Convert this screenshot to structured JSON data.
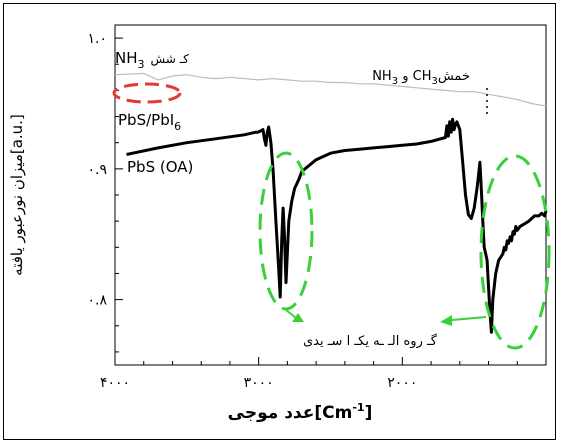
{
  "chart_data": {
    "type": "line",
    "title": "",
    "xlabel": "عدد موجی[Cm-1]",
    "xlabel_parts": {
      "main": "عدد موجی[Cm",
      "sup": "-1",
      "close": "]"
    },
    "ylabel": "میزان نورعبور یافته[a.u.]",
    "xlim": [
      4000,
      1000
    ],
    "ylim": [
      0.75,
      1.01
    ],
    "x_ticks": [
      {
        "value": 4000,
        "label": "۴۰۰۰"
      },
      {
        "value": 3000,
        "label": "۳۰۰۰"
      },
      {
        "value": 2000,
        "label": "۲۰۰۰"
      }
    ],
    "y_ticks": [
      {
        "value": 1.0,
        "label": "۱.۰"
      },
      {
        "value": 0.9,
        "label": "۰.۹"
      },
      {
        "value": 0.8,
        "label": "۰.۸"
      }
    ],
    "series": [
      {
        "name": "PbS/PbI6",
        "color": "#bdbdbd",
        "x": [
          4000,
          3800,
          3700,
          3600,
          3500,
          3400,
          3300,
          3200,
          3100,
          3000,
          2900,
          2800,
          2700,
          2600,
          2500,
          2400,
          2300,
          2200,
          2100,
          2000,
          1900,
          1800,
          1700,
          1600,
          1500,
          1400,
          1300,
          1200,
          1100,
          1000
        ],
        "y": [
          0.972,
          0.973,
          0.968,
          0.971,
          0.972,
          0.97,
          0.969,
          0.97,
          0.969,
          0.968,
          0.969,
          0.968,
          0.967,
          0.967,
          0.966,
          0.966,
          0.965,
          0.965,
          0.964,
          0.963,
          0.962,
          0.961,
          0.96,
          0.959,
          0.959,
          0.957,
          0.955,
          0.953,
          0.95,
          0.948
        ]
      },
      {
        "name": "PbS (OA)",
        "color": "#000000",
        "x": [
          3920,
          3700,
          3500,
          3300,
          3100,
          3020,
          3005,
          2985,
          2970,
          2960,
          2950,
          2940,
          2930,
          2915,
          2900,
          2880,
          2860,
          2850,
          2840,
          2830,
          2820,
          2810,
          2790,
          2770,
          2750,
          2720,
          2700,
          2600,
          2500,
          2400,
          2300,
          2200,
          2100,
          2000,
          1900,
          1800,
          1700,
          1690,
          1680,
          1670,
          1660,
          1650,
          1640,
          1630,
          1620,
          1600,
          1580,
          1560,
          1540,
          1520,
          1500,
          1480,
          1470,
          1460,
          1450,
          1440,
          1430,
          1420,
          1410,
          1400,
          1390,
          1380,
          1370,
          1350,
          1330,
          1300,
          1290,
          1280,
          1270,
          1260,
          1250,
          1240,
          1230,
          1220,
          1210,
          1200,
          1180,
          1150,
          1120,
          1100,
          1080,
          1050,
          1030,
          1010,
          1000
        ],
        "y": [
          0.911,
          0.916,
          0.92,
          0.923,
          0.926,
          0.928,
          0.928,
          0.929,
          0.93,
          0.923,
          0.918,
          0.928,
          0.932,
          0.92,
          0.9,
          0.86,
          0.822,
          0.802,
          0.845,
          0.87,
          0.848,
          0.813,
          0.86,
          0.875,
          0.885,
          0.892,
          0.898,
          0.907,
          0.912,
          0.914,
          0.915,
          0.916,
          0.917,
          0.918,
          0.919,
          0.921,
          0.924,
          0.933,
          0.925,
          0.936,
          0.928,
          0.938,
          0.93,
          0.934,
          0.936,
          0.93,
          0.905,
          0.88,
          0.865,
          0.862,
          0.87,
          0.885,
          0.895,
          0.905,
          0.885,
          0.86,
          0.84,
          0.835,
          0.83,
          0.81,
          0.79,
          0.775,
          0.8,
          0.82,
          0.83,
          0.835,
          0.84,
          0.838,
          0.845,
          0.843,
          0.848,
          0.845,
          0.852,
          0.85,
          0.856,
          0.853,
          0.856,
          0.858,
          0.86,
          0.862,
          0.864,
          0.864,
          0.866,
          0.864,
          0.868
        ]
      }
    ],
    "annotations": [
      {
        "id": "pbs_pbi6",
        "text": "PbS/PbI",
        "sub": "6"
      },
      {
        "id": "pbs_oa",
        "text": "PbS (OA)"
      },
      {
        "id": "nh3_stretch",
        "text": "NH",
        "sub": "3",
        "suffix": "کـ شش"
      },
      {
        "id": "nh3_ch3_bend",
        "text_pre": "خمش ",
        "ch": "CH",
        "ch_sub": "3",
        "mid": " و ",
        "nh": "NH",
        "nh_sub": "3"
      },
      {
        "id": "acid_group",
        "text": "گـ روه الـ ـه یکـ ا سـ یدی"
      }
    ],
    "highlight_colors": {
      "red": "#e53935",
      "green": "#39d039"
    }
  }
}
